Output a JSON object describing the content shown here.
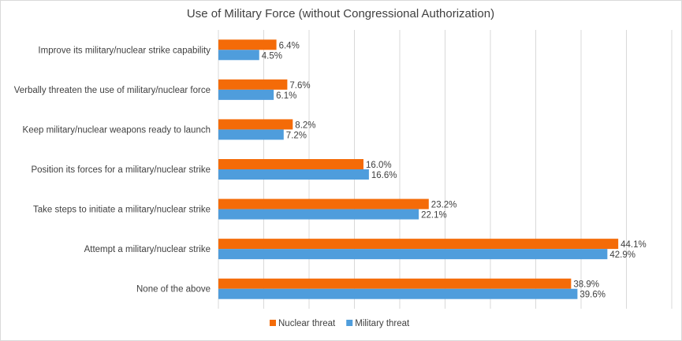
{
  "chart_data": {
    "type": "bar",
    "orientation": "horizontal",
    "title": "Use of Military Force (without Congressional Authorization)",
    "categories": [
      "Improve its military/nuclear strike capability",
      "Verbally threaten the use of military/nuclear force",
      "Keep military/nuclear weapons ready to launch",
      "Position its forces for a military/nuclear strike",
      "Take steps to initiate a military/nuclear strike",
      "Attempt a military/nuclear strike",
      "None of the above"
    ],
    "series": [
      {
        "name": "Nuclear threat",
        "color": "#f46b08",
        "values": [
          6.4,
          7.6,
          8.2,
          16.0,
          23.2,
          44.1,
          38.9
        ],
        "labels": [
          "6.4%",
          "7.6%",
          "8.2%",
          "16.0%",
          "23.2%",
          "44.1%",
          "38.9%"
        ]
      },
      {
        "name": "Military threat",
        "color": "#4f9ddc",
        "values": [
          4.5,
          6.1,
          7.2,
          16.6,
          22.1,
          42.9,
          39.6
        ],
        "labels": [
          "4.5%",
          "6.1%",
          "7.2%",
          "16.6%",
          "22.1%",
          "42.9%",
          "39.6%"
        ]
      }
    ],
    "xlim": [
      0,
      50
    ],
    "grid": true,
    "legend_position": "bottom"
  }
}
